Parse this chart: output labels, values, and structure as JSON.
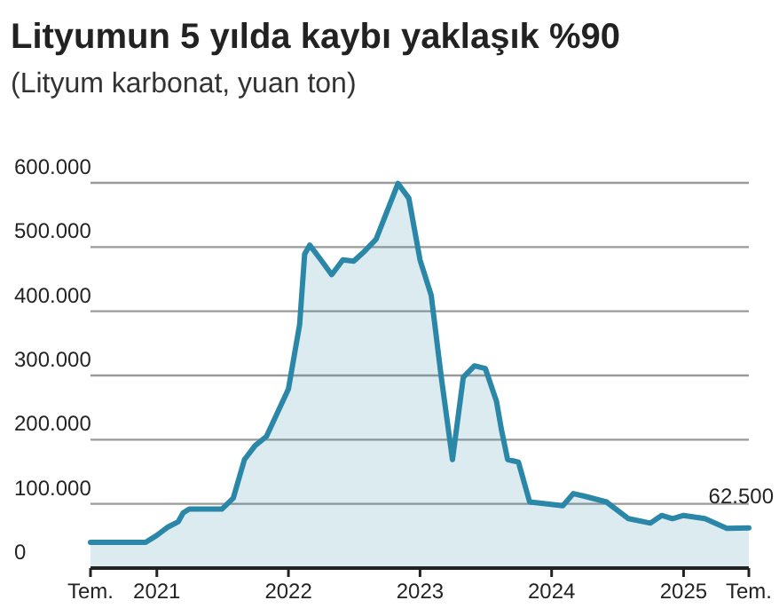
{
  "chart_data": {
    "type": "area",
    "title": "Lityumun 5 yılda kaybı yaklaşık %90",
    "subtitle": "(Lityum karbonat, yuan ton)",
    "x": [
      "2020-07",
      "2020-12",
      "2021-01",
      "2021-02",
      "2021-03",
      "2021-03-15",
      "2021-04",
      "2021-07",
      "2021-08",
      "2021-09",
      "2021-10",
      "2021-11",
      "2022-01",
      "2022-02",
      "2022-02-15",
      "2022-03",
      "2022-04",
      "2022-05",
      "2022-06",
      "2022-07",
      "2022-08",
      "2022-09",
      "2022-11",
      "2022-12",
      "2023-01",
      "2023-02",
      "2023-03",
      "2023-04",
      "2023-05",
      "2023-06",
      "2023-07",
      "2023-08",
      "2023-08-15",
      "2023-09",
      "2023-10",
      "2023-11",
      "2024-02",
      "2024-03",
      "2024-04",
      "2024-06",
      "2024-08",
      "2024-10",
      "2024-11",
      "2024-12",
      "2025-01",
      "2025-03",
      "2025-05",
      "2025-07"
    ],
    "series": [
      {
        "color": "#2b87a8",
        "values": [
          40000,
          40000,
          51000,
          64000,
          72000,
          86000,
          92000,
          92000,
          109000,
          169000,
          191000,
          205000,
          279000,
          379000,
          489000,
          503000,
          480000,
          457000,
          480000,
          478000,
          494000,
          512000,
          599000,
          576000,
          480000,
          425000,
          297000,
          169000,
          297000,
          315000,
          311000,
          260000,
          215000,
          169000,
          165000,
          103000,
          97000,
          116000,
          112000,
          103000,
          77000,
          70000,
          82000,
          77000,
          82000,
          77000,
          62000,
          62500
        ]
      }
    ],
    "xlim": [
      "2020-07",
      "2025-07"
    ],
    "xticks": [
      {
        "value": "2020-07",
        "label": "Tem."
      },
      {
        "value": "2021",
        "label": "2021"
      },
      {
        "value": "2022",
        "label": "2022"
      },
      {
        "value": "2023",
        "label": "2023"
      },
      {
        "value": "2024",
        "label": "2024"
      },
      {
        "value": "2025",
        "label": "2025"
      },
      {
        "value": "2025-07",
        "label": "Tem."
      }
    ],
    "ylim": [
      0,
      600000
    ],
    "yticks": [
      0,
      {
        "value": 100000,
        "label": "100.000"
      },
      {
        "value": 200000,
        "label": "200.000"
      },
      {
        "value": 300000,
        "label": "300.000"
      },
      {
        "value": 400000,
        "label": "400.000"
      },
      {
        "value": 500000,
        "label": "500.000"
      },
      {
        "value": 600000,
        "label": "600.000"
      }
    ],
    "grid": "y",
    "annotations": [
      {
        "text": "62.500",
        "x": "2025-07",
        "y": 62500
      }
    ]
  }
}
